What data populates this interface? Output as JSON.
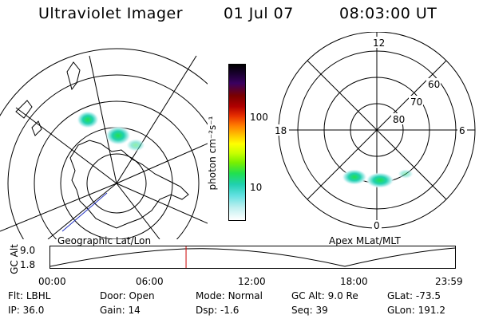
{
  "header": {
    "instrument": "Ultraviolet Imager",
    "date": "01 Jul 07",
    "time": "08:03:00 UT"
  },
  "colorbar": {
    "unit_label": "photon cm⁻²s⁻¹",
    "ticks": [
      "100",
      "10"
    ],
    "colors": [
      "#000000",
      "#1a0030",
      "#3a0060",
      "#7a0000",
      "#b00000",
      "#e83000",
      "#ff7a00",
      "#ffc000",
      "#ffff00",
      "#c8ff00",
      "#78f000",
      "#20e050",
      "#20d0b0",
      "#60e0e0",
      "#c0f0f0",
      "#ffffff"
    ]
  },
  "left_map": {
    "label": "Geographic Lat/Lon"
  },
  "right_map": {
    "label": "Apex MLat/MLT",
    "mlt_labels": {
      "top": "12",
      "left": "18",
      "right": "6",
      "bottom": "0"
    },
    "lat_labels": [
      "60",
      "70",
      "80"
    ]
  },
  "timeline": {
    "axis_label": "GC Alt",
    "y_ticks": [
      "9.0",
      "1.8"
    ],
    "x_ticks": [
      "00:00",
      "06:00",
      "12:00",
      "18:00",
      "23:59"
    ],
    "current_time_fraction": 0.3354,
    "marker_color": "#cc0000"
  },
  "info": {
    "row1": [
      {
        "label": "Flt:",
        "value": "LBHL"
      },
      {
        "label": "Door:",
        "value": "Open"
      },
      {
        "label": "Mode:",
        "value": "Normal"
      },
      {
        "label": "GC Alt:",
        "value": "9.0 Re"
      },
      {
        "label": "GLat:",
        "value": "-73.5"
      }
    ],
    "row2": [
      {
        "label": "IP:",
        "value": "36.0"
      },
      {
        "label": "Gain:",
        "value": "14"
      },
      {
        "label": "Dsp:",
        "value": "-1.6"
      },
      {
        "label": "Seq:",
        "value": "39"
      },
      {
        "label": "GLon:",
        "value": "191.2"
      }
    ]
  }
}
